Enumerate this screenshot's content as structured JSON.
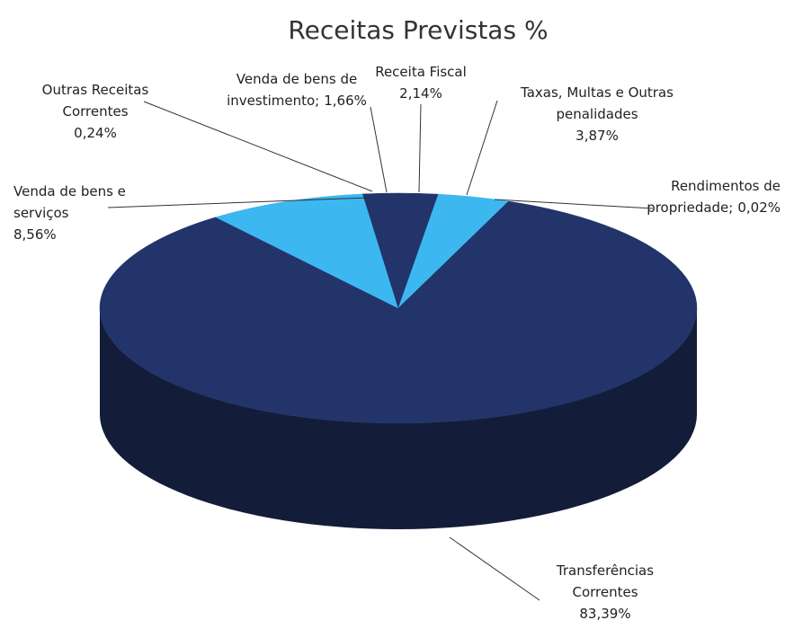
{
  "chart_data": {
    "type": "pie",
    "title": "Receitas Previstas %",
    "categories": [
      "Receita Fiscal",
      "Taxas, Multas e Outras penalidades",
      "Rendimentos de propriedade;",
      "Transferências Correntes",
      "Venda de bens e serviços",
      "Outras Receitas Correntes",
      "Venda de bens de investimento;"
    ],
    "values": [
      2.14,
      3.87,
      0.02,
      83.39,
      8.56,
      0.24,
      1.66
    ],
    "value_labels": [
      "2,14%",
      "3,87%",
      "0,02%",
      "83,39%",
      "8,56%",
      "0,24%",
      "1,66%"
    ],
    "colors": [
      "#22346a",
      "#3db7ef",
      "#22346a",
      "#22346a",
      "#3db7ef",
      "#22346a",
      "#22346a"
    ]
  }
}
